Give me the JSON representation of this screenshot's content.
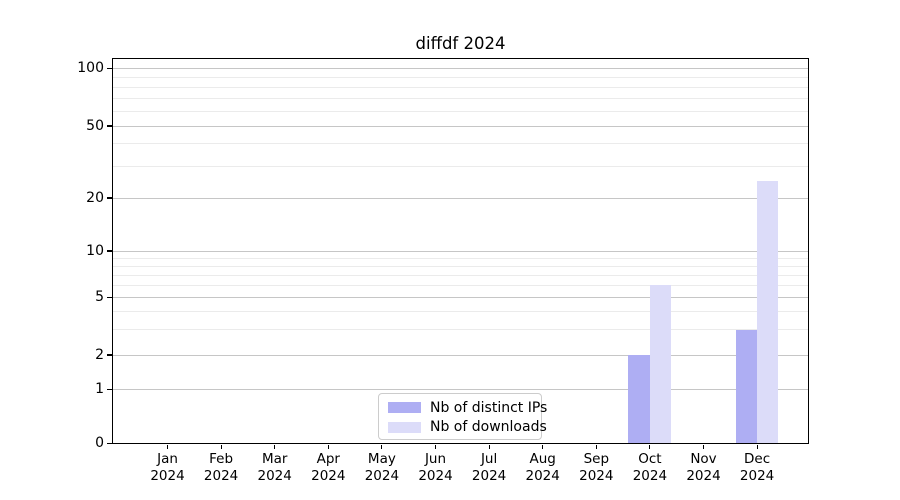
{
  "chart_data": {
    "type": "bar",
    "title": "diffdf 2024",
    "categories": [
      "Jan",
      "Feb",
      "Mar",
      "Apr",
      "May",
      "Jun",
      "Jul",
      "Aug",
      "Sep",
      "Oct",
      "Nov",
      "Dec"
    ],
    "category_year": "2024",
    "series": [
      {
        "name": "Nb of distinct IPs",
        "color": "#aeaef3",
        "values": [
          0,
          0,
          0,
          0,
          0,
          0,
          0,
          0,
          0,
          2,
          0,
          3
        ]
      },
      {
        "name": "Nb of downloads",
        "color": "#dcdcf9",
        "values": [
          0,
          0,
          0,
          0,
          0,
          0,
          0,
          0,
          0,
          6,
          0,
          25
        ]
      }
    ],
    "y_axis": {
      "scale": "symlog-like",
      "ticks": [
        0,
        1,
        2,
        5,
        10,
        20,
        50,
        100
      ],
      "minor_gridlines": [
        3,
        4,
        6,
        7,
        8,
        9,
        30,
        40,
        60,
        70,
        80,
        90
      ]
    },
    "x_axis": {
      "tick_label_line2": "2024"
    },
    "legend": {
      "position": "lower-center",
      "entries": [
        "Nb of distinct IPs",
        "Nb of downloads"
      ]
    },
    "colors": {
      "axis": "#000000",
      "grid_major": "#c6c6c6",
      "grid_minor": "#ebebeb",
      "background": "#ffffff"
    }
  }
}
